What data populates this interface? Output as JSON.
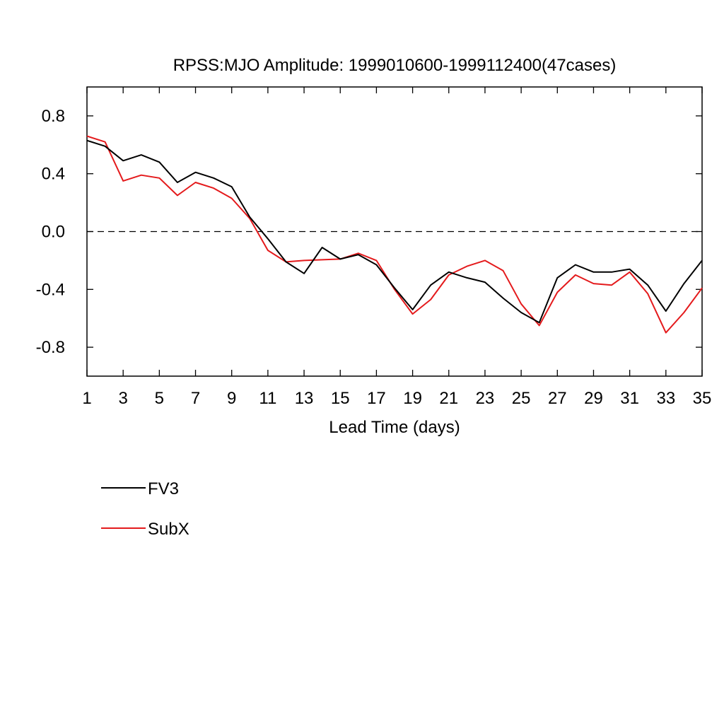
{
  "chart_data": {
    "type": "line",
    "title": "RPSS:MJO Amplitude: 1999010600-1999112400(47cases)",
    "xlabel": "Lead Time (days)",
    "ylabel": "",
    "xlim": [
      1,
      35
    ],
    "ylim": [
      -1.0,
      1.0
    ],
    "x_ticks": [
      1,
      3,
      5,
      7,
      9,
      11,
      13,
      15,
      17,
      19,
      21,
      23,
      25,
      27,
      29,
      31,
      33,
      35
    ],
    "x_tick_labels": [
      "1",
      "3",
      "5",
      "7",
      "9",
      "11",
      "13",
      "15",
      "17",
      "19",
      "21",
      "23",
      "25",
      "27",
      "29",
      "31",
      "33",
      "35"
    ],
    "y_ticks": [
      0.8,
      0.4,
      0.0,
      -0.4,
      -0.8
    ],
    "y_tick_labels": [
      "0.8",
      "0.4",
      "0.0",
      "-0.4",
      "-0.8"
    ],
    "reference_line": {
      "y": 0.0,
      "style": "dashed"
    },
    "grid": false,
    "legend_position": "below-left",
    "x": [
      1,
      2,
      3,
      4,
      5,
      6,
      7,
      8,
      9,
      10,
      11,
      12,
      13,
      14,
      15,
      16,
      17,
      18,
      19,
      20,
      21,
      22,
      23,
      24,
      25,
      26,
      27,
      28,
      29,
      30,
      31,
      32,
      33,
      34,
      35
    ],
    "series": [
      {
        "name": "FV3",
        "color": "#000000",
        "values": [
          0.63,
          0.59,
          0.49,
          0.53,
          0.48,
          0.34,
          0.41,
          0.37,
          0.31,
          0.1,
          -0.05,
          -0.21,
          -0.29,
          -0.11,
          -0.19,
          -0.16,
          -0.23,
          -0.39,
          -0.54,
          -0.37,
          -0.28,
          -0.32,
          -0.35,
          -0.46,
          -0.56,
          -0.63,
          -0.32,
          -0.23,
          -0.28,
          -0.28,
          -0.26,
          -0.37,
          -0.55,
          -0.36,
          -0.2
        ]
      },
      {
        "name": "SubX",
        "color": "#e41a1c",
        "values": [
          0.66,
          0.62,
          0.35,
          0.39,
          0.37,
          0.25,
          0.34,
          0.3,
          0.23,
          0.09,
          -0.13,
          -0.21,
          -0.2,
          -0.195,
          -0.19,
          -0.15,
          -0.2,
          -0.4,
          -0.57,
          -0.47,
          -0.3,
          -0.24,
          -0.2,
          -0.27,
          -0.5,
          -0.65,
          -0.42,
          -0.3,
          -0.36,
          -0.37,
          -0.28,
          -0.43,
          -0.7,
          -0.56,
          -0.39
        ]
      }
    ]
  }
}
